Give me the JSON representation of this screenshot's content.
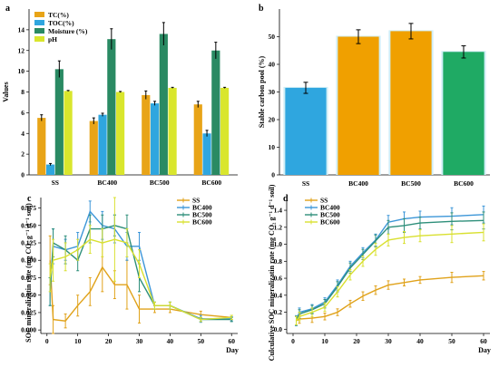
{
  "chart_data": [
    {
      "panel": "a",
      "type": "bar",
      "categories": [
        "SS",
        "BC400",
        "BC500",
        "BC600"
      ],
      "ylabel": "Values",
      "ylim": [
        0,
        16
      ],
      "yticks": [
        0,
        2,
        4,
        6,
        8,
        10,
        12,
        14
      ],
      "legend_position": "top-left",
      "series": [
        {
          "name": "TC(%)",
          "color": "#e8a417",
          "values": [
            5.5,
            5.2,
            7.7,
            6.8
          ],
          "err": [
            0.3,
            0.3,
            0.4,
            0.3
          ]
        },
        {
          "name": "TOC(%)",
          "color": "#2fa6df",
          "values": [
            1.0,
            5.8,
            6.9,
            4.0
          ],
          "err": [
            0.1,
            0.15,
            0.2,
            0.3
          ]
        },
        {
          "name": "Moisture (%)",
          "color": "#2a8a63",
          "values": [
            10.2,
            13.1,
            13.6,
            12.0
          ],
          "err": [
            0.8,
            1.0,
            1.1,
            0.8
          ]
        },
        {
          "name": "pH",
          "color": "#d9e62d",
          "values": [
            8.1,
            8.0,
            8.4,
            8.4
          ],
          "err": [
            0.05,
            0.05,
            0.05,
            0.05
          ]
        }
      ]
    },
    {
      "panel": "b",
      "type": "bar",
      "categories": [
        "SS",
        "BC400",
        "BC500",
        "BC600"
      ],
      "ylabel": "Stable carbon pool (%)",
      "ylim": [
        0,
        60
      ],
      "yticks": [
        0,
        10,
        20,
        30,
        40,
        50
      ],
      "values": [
        31.5,
        50.0,
        52.0,
        44.5
      ],
      "err": [
        2.0,
        2.5,
        2.8,
        2.2
      ],
      "colors": [
        "#2fa6df",
        "#f0a000",
        "#f0a000",
        "#1faa64"
      ]
    },
    {
      "panel": "c",
      "type": "line",
      "xlabel": "Day",
      "ylabel": "SOC mineralizatin rate (mg CO₂ g⁻¹ d⁻¹ soil)",
      "xlim": [
        -2,
        62
      ],
      "ylim": [
        -0.005,
        0.19
      ],
      "xticks": [
        0,
        10,
        20,
        30,
        40,
        50,
        60
      ],
      "yticks": [
        0.0,
        0.025,
        0.05,
        0.075,
        0.1,
        0.125,
        0.15,
        0.175
      ],
      "ytick_labels": [
        "0.000",
        "0.025",
        "0.050",
        "0.075",
        "0.100",
        "0.125",
        "0.150",
        "0.175"
      ],
      "x": [
        1,
        2,
        6,
        10,
        14,
        18,
        22,
        26,
        30,
        35,
        40,
        50,
        60
      ],
      "legend_position": "top-right",
      "series": [
        {
          "name": "SS",
          "color": "#e0a21a",
          "values": [
            0.1,
            0.015,
            0.013,
            0.035,
            0.055,
            0.09,
            0.065,
            0.065,
            0.03,
            0.03,
            0.03,
            0.022,
            0.018
          ],
          "err": [
            0.035,
            0.02,
            0.01,
            0.015,
            0.02,
            0.035,
            0.02,
            0.035,
            0.02,
            0.005,
            0.005,
            0.005,
            0.003
          ]
        },
        {
          "name": "BC400",
          "color": "#3c96d8",
          "values": [
            0.055,
            0.12,
            0.115,
            0.12,
            0.17,
            0.15,
            0.145,
            0.12,
            0.12,
            0.035,
            0.035,
            0.016,
            0.016
          ],
          "err": [
            0.02,
            0.025,
            0.015,
            0.02,
            0.015,
            0.02,
            0.02,
            0.02,
            0.02,
            0.005,
            0.005,
            0.005,
            0.003
          ]
        },
        {
          "name": "BC500",
          "color": "#2e8f7a",
          "values": [
            0.055,
            0.125,
            0.115,
            0.1,
            0.145,
            0.145,
            0.15,
            0.145,
            0.075,
            0.035,
            0.035,
            0.015,
            0.015
          ],
          "err": [
            0.02,
            0.02,
            0.02,
            0.015,
            0.02,
            0.02,
            0.015,
            0.02,
            0.02,
            0.005,
            0.005,
            0.003,
            0.003
          ]
        },
        {
          "name": "BC600",
          "color": "#d9e030",
          "values": [
            0.075,
            0.1,
            0.105,
            0.115,
            0.13,
            0.125,
            0.13,
            0.125,
            0.095,
            0.035,
            0.035,
            0.015,
            0.018
          ],
          "err": [
            0.02,
            0.03,
            0.02,
            0.015,
            0.02,
            0.02,
            0.06,
            0.02,
            0.02,
            0.005,
            0.005,
            0.003,
            0.003
          ]
        }
      ]
    },
    {
      "panel": "d",
      "type": "line",
      "xlabel": "Day",
      "ylabel": "Culculative SOC mineralizatin rate (mg CO₂ g⁻¹ d⁻¹ soil)",
      "xlim": [
        -2,
        62
      ],
      "ylim": [
        -0.05,
        1.55
      ],
      "xticks": [
        0,
        10,
        20,
        30,
        40,
        50,
        60
      ],
      "yticks": [
        0.0,
        0.2,
        0.4,
        0.6,
        0.8,
        1.0,
        1.2,
        1.4
      ],
      "ytick_labels": [
        "0.0",
        "0.2",
        "0.4",
        "0.6",
        "0.8",
        "1.0",
        "1.2",
        "1.4"
      ],
      "x": [
        1,
        2,
        6,
        10,
        14,
        18,
        22,
        26,
        30,
        35,
        40,
        50,
        60
      ],
      "legend_position": "top-left",
      "series": [
        {
          "name": "SS",
          "color": "#e0a21a",
          "values": [
            0.1,
            0.12,
            0.13,
            0.15,
            0.2,
            0.3,
            0.39,
            0.46,
            0.52,
            0.55,
            0.58,
            0.61,
            0.63
          ],
          "err": [
            0.05,
            0.05,
            0.05,
            0.04,
            0.04,
            0.04,
            0.05,
            0.05,
            0.05,
            0.04,
            0.04,
            0.06,
            0.05
          ]
        },
        {
          "name": "BC400",
          "color": "#3c96d8",
          "values": [
            0.1,
            0.2,
            0.24,
            0.32,
            0.52,
            0.74,
            0.9,
            1.05,
            1.26,
            1.3,
            1.32,
            1.33,
            1.35
          ],
          "err": [
            0.06,
            0.05,
            0.05,
            0.05,
            0.06,
            0.06,
            0.06,
            0.07,
            0.08,
            0.08,
            0.07,
            0.1,
            0.1
          ]
        },
        {
          "name": "BC500",
          "color": "#2e8f7a",
          "values": [
            0.1,
            0.18,
            0.23,
            0.3,
            0.5,
            0.72,
            0.88,
            1.04,
            1.2,
            1.22,
            1.25,
            1.27,
            1.28
          ],
          "err": [
            0.05,
            0.05,
            0.05,
            0.05,
            0.06,
            0.06,
            0.06,
            0.07,
            0.08,
            0.08,
            0.07,
            0.1,
            0.1
          ]
        },
        {
          "name": "BC600",
          "color": "#d9e030",
          "values": [
            0.1,
            0.15,
            0.2,
            0.26,
            0.44,
            0.64,
            0.8,
            0.94,
            1.05,
            1.08,
            1.1,
            1.12,
            1.14
          ],
          "err": [
            0.05,
            0.05,
            0.05,
            0.05,
            0.06,
            0.06,
            0.06,
            0.07,
            0.07,
            0.07,
            0.07,
            0.1,
            0.1
          ]
        }
      ]
    }
  ]
}
